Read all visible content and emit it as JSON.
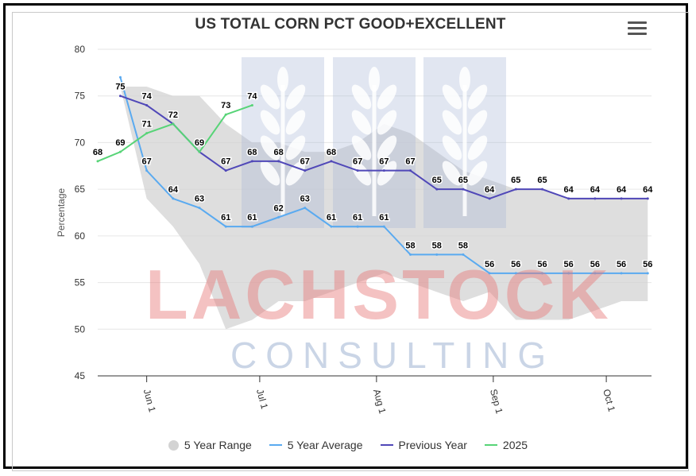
{
  "header": {
    "title": "US TOTAL CORN PCT GOOD+EXCELLENT",
    "menu_icon": "hamburger-menu-icon"
  },
  "watermark": {
    "line1": "LACHSTOCK",
    "line2": "CONSULTING",
    "icon": "wheat-icon"
  },
  "chart_data": {
    "type": "line",
    "title": "US TOTAL CORN PCT GOOD+EXCELLENT",
    "ylabel": "Percentage",
    "xlabel": "",
    "ylim": [
      45,
      80
    ],
    "yticks": [
      45,
      50,
      55,
      60,
      65,
      70,
      75,
      80
    ],
    "xticks": [
      {
        "label": "Jun 1",
        "day": 152
      },
      {
        "label": "Jul 1",
        "day": 182
      },
      {
        "label": "Aug 1",
        "day": 213
      },
      {
        "label": "Sep 1",
        "day": 244
      },
      {
        "label": "Oct 1",
        "day": 274
      }
    ],
    "xlim_days": [
      139,
      286
    ],
    "grid": true,
    "legend_position": "bottom",
    "series": [
      {
        "name": "5 Year Range",
        "kind": "range",
        "color": "#d3d3d3",
        "points": [
          {
            "day": 145,
            "low": 76,
            "high": 76
          },
          {
            "day": 152,
            "low": 64,
            "high": 76
          },
          {
            "day": 159,
            "low": 61,
            "high": 75
          },
          {
            "day": 166,
            "low": 57,
            "high": 75
          },
          {
            "day": 173,
            "low": 50,
            "high": 72
          },
          {
            "day": 180,
            "low": 51,
            "high": 70
          },
          {
            "day": 187,
            "low": 53,
            "high": 70
          },
          {
            "day": 194,
            "low": 53,
            "high": 69
          },
          {
            "day": 201,
            "low": 54,
            "high": 69
          },
          {
            "day": 208,
            "low": 55,
            "high": 70
          },
          {
            "day": 215,
            "low": 56,
            "high": 72
          },
          {
            "day": 222,
            "low": 55,
            "high": 71
          },
          {
            "day": 229,
            "low": 54,
            "high": 69
          },
          {
            "day": 236,
            "low": 53,
            "high": 67
          },
          {
            "day": 243,
            "low": 54,
            "high": 66
          },
          {
            "day": 250,
            "low": 51,
            "high": 65
          },
          {
            "day": 257,
            "low": 51,
            "high": 65
          },
          {
            "day": 264,
            "low": 51,
            "high": 64
          },
          {
            "day": 271,
            "low": 52,
            "high": 64
          },
          {
            "day": 278,
            "low": 53,
            "high": 64
          },
          {
            "day": 285,
            "low": 53,
            "high": 64
          }
        ]
      },
      {
        "name": "5 Year Average",
        "color": "#5aaaf0",
        "x": [
          145,
          152,
          159,
          166,
          173,
          180,
          187,
          194,
          201,
          208,
          215,
          222,
          229,
          236,
          243,
          250,
          257,
          264,
          271,
          278,
          285
        ],
        "y": [
          77,
          67,
          64,
          63,
          61,
          61,
          62,
          63,
          61,
          61,
          61,
          58,
          58,
          58,
          56,
          56,
          56,
          56,
          56,
          56,
          56
        ],
        "label_from_index": 1
      },
      {
        "name": "Previous Year",
        "color": "#5048b8",
        "x": [
          145,
          152,
          159,
          166,
          173,
          180,
          187,
          194,
          201,
          208,
          215,
          222,
          229,
          236,
          243,
          250,
          257,
          264,
          271,
          278,
          285
        ],
        "y": [
          75,
          74,
          72,
          69,
          67,
          68,
          68,
          67,
          68,
          67,
          67,
          67,
          65,
          65,
          64,
          65,
          65,
          64,
          64,
          64,
          64
        ],
        "label_from_index": 0
      },
      {
        "name": "2025",
        "color": "#57d477",
        "x": [
          139,
          145,
          152,
          159,
          166,
          173,
          180
        ],
        "y": [
          68,
          69,
          71,
          72,
          69,
          73,
          74
        ],
        "label_from_index": 0,
        "label_skip": [
          3,
          4
        ]
      }
    ]
  },
  "legend": {
    "items": [
      {
        "label": "5 Year Range"
      },
      {
        "label": "5 Year Average"
      },
      {
        "label": "Previous Year"
      },
      {
        "label": "2025"
      }
    ]
  }
}
